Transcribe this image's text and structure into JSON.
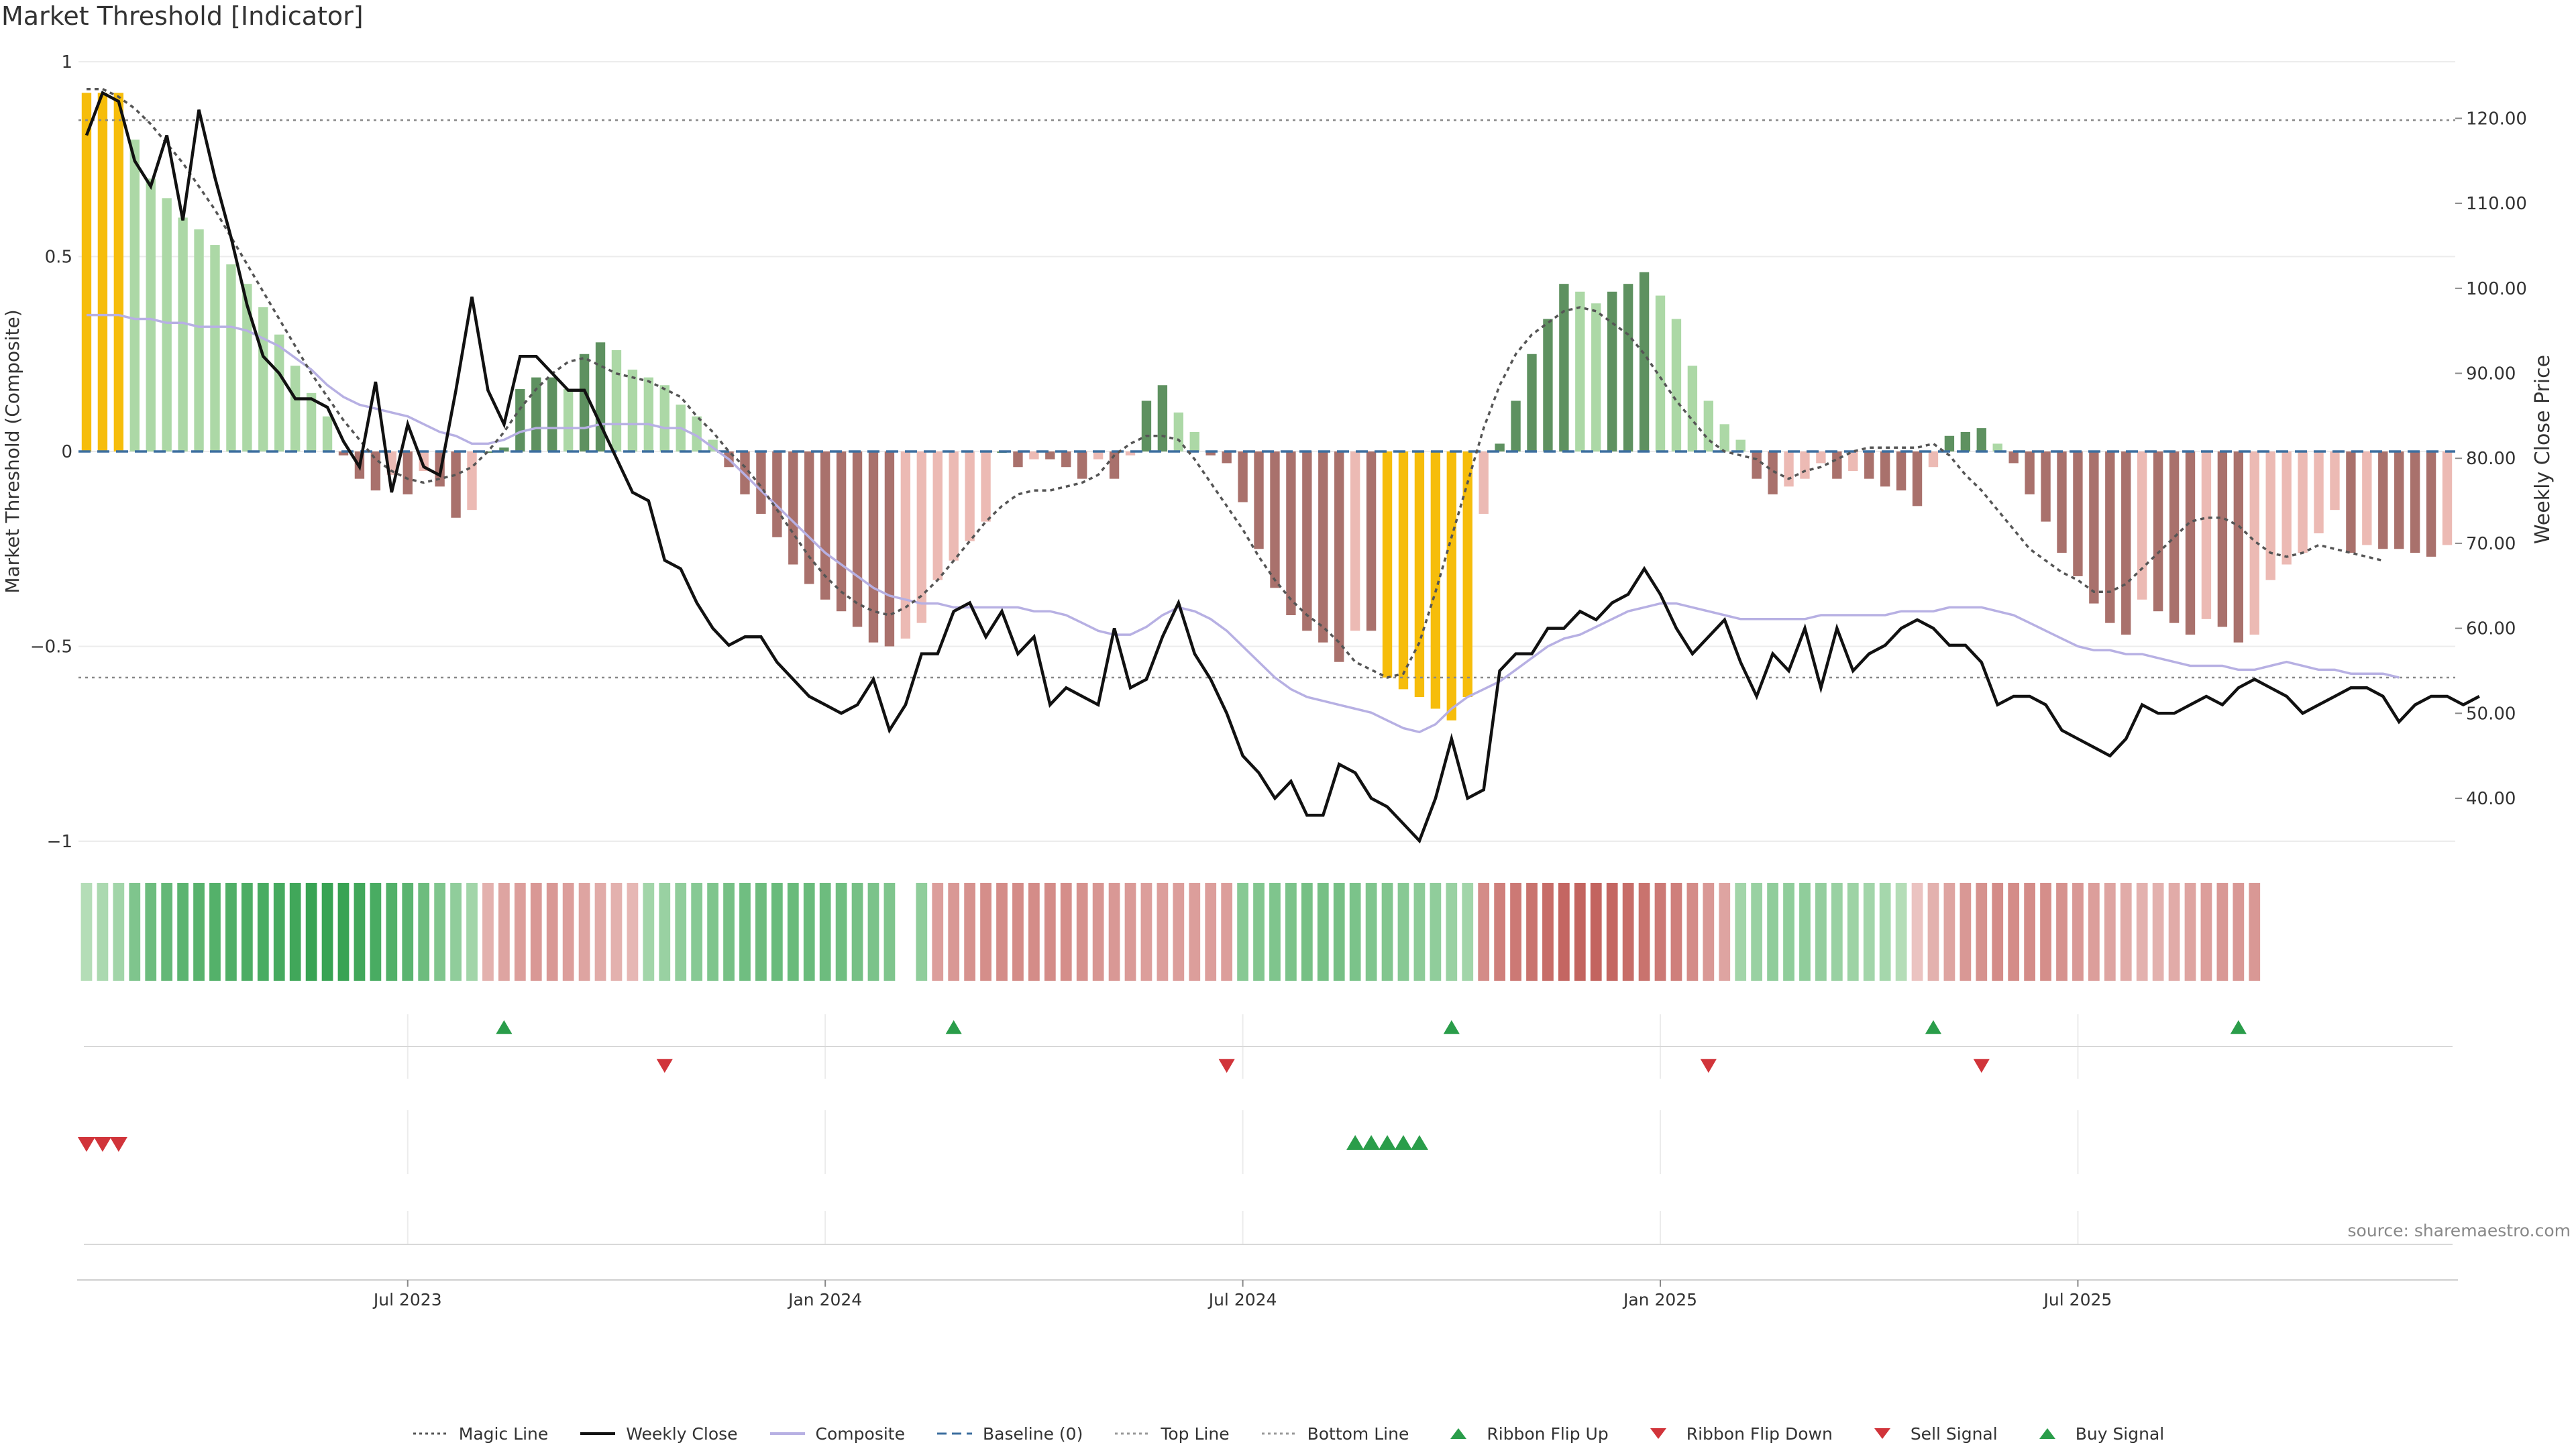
{
  "title": "Market Threshold [Indicator]",
  "source": "source: sharemaestro.com",
  "colors": {
    "magic": "#555555",
    "close": "#111111",
    "composite": "#b7b0e3",
    "baseline": "#3d6f9f",
    "ref": "#888888",
    "lightGreen": "#acd8a6",
    "darkGreen": "#5e9160",
    "lightRed": "#ecbab4",
    "darkRed": "#a9716c",
    "extreme": "#f6bd0b",
    "flipUp": "#2a9d4a",
    "flipDown": "#d1343a"
  },
  "chart_data": {
    "type": "bar",
    "title": "Market Threshold [Indicator]",
    "y_left": {
      "label": "Market Threshold (Composite)",
      "range": [
        -1,
        1
      ],
      "ticks": [
        "1",
        "0.5",
        "0",
        "−0.5",
        "−1"
      ]
    },
    "y_right": {
      "label": "Weekly Close Price",
      "range": [
        35,
        127
      ],
      "ticks": [
        "120.00",
        "110.00",
        "100.00",
        "90.00",
        "80.00",
        "70.00",
        "60.00",
        "50.00",
        "40.00"
      ]
    },
    "x_ticks": [
      "Jul 2023",
      "Jan 2024",
      "Jul 2024",
      "Jan 2025",
      "Jul 2025"
    ],
    "x_tick_weeks": [
      20,
      46,
      72,
      98,
      124
    ],
    "top_line": 0.85,
    "bottom_line": -0.58,
    "composite_bars": [
      0.92,
      0.92,
      0.92,
      0.8,
      0.7,
      0.65,
      0.6,
      0.57,
      0.53,
      0.48,
      0.43,
      0.37,
      0.3,
      0.22,
      0.15,
      0.09,
      -0.01,
      -0.07,
      -0.1,
      -0.06,
      -0.11,
      -0.05,
      -0.09,
      -0.17,
      -0.15,
      0,
      0.01,
      0.16,
      0.19,
      0.19,
      0.16,
      0.25,
      0.28,
      0.26,
      0.21,
      0.19,
      0.17,
      0.12,
      0.09,
      0.03,
      -0.04,
      -0.11,
      -0.16,
      -0.22,
      -0.29,
      -0.34,
      -0.38,
      -0.41,
      -0.45,
      -0.49,
      -0.5,
      -0.48,
      -0.44,
      -0.33,
      -0.28,
      -0.23,
      -0.18,
      0,
      -0.04,
      -0.02,
      -0.02,
      -0.04,
      -0.07,
      -0.02,
      -0.07,
      -0.01,
      0.13,
      0.17,
      0.1,
      0.05,
      -0.01,
      -0.03,
      -0.13,
      -0.25,
      -0.35,
      -0.42,
      -0.46,
      -0.49,
      -0.54,
      -0.46,
      -0.46,
      -0.58,
      -0.61,
      -0.63,
      -0.66,
      -0.69,
      -0.63,
      -0.16,
      0.02,
      0.13,
      0.25,
      0.34,
      0.43,
      0.41,
      0.38,
      0.41,
      0.43,
      0.46,
      0.4,
      0.34,
      0.22,
      0.13,
      0.07,
      0.03,
      -0.07,
      -0.11,
      -0.09,
      -0.07,
      -0.03,
      -0.07,
      -0.05,
      -0.07,
      -0.09,
      -0.1,
      -0.14,
      -0.04,
      0.04,
      0.05,
      0.06,
      0.02,
      -0.03,
      -0.11,
      -0.18,
      -0.26,
      -0.32,
      -0.39,
      -0.44,
      -0.47,
      -0.38,
      -0.41,
      -0.44,
      -0.47,
      -0.43,
      -0.45,
      -0.49,
      -0.47,
      -0.33,
      -0.29,
      -0.26,
      -0.21,
      -0.15,
      -0.26,
      -0.24,
      -0.25,
      -0.25,
      -0.26,
      -0.27,
      -0.24
    ],
    "composite_line": [
      0.35,
      0.35,
      0.35,
      0.34,
      0.34,
      0.33,
      0.33,
      0.32,
      0.32,
      0.32,
      0.31,
      0.29,
      0.27,
      0.24,
      0.21,
      0.17,
      0.14,
      0.12,
      0.11,
      0.1,
      0.09,
      0.07,
      0.05,
      0.04,
      0.02,
      0.02,
      0.03,
      0.05,
      0.06,
      0.06,
      0.06,
      0.06,
      0.07,
      0.07,
      0.07,
      0.07,
      0.06,
      0.06,
      0.04,
      0.01,
      -0.02,
      -0.06,
      -0.1,
      -0.14,
      -0.18,
      -0.22,
      -0.26,
      -0.29,
      -0.32,
      -0.35,
      -0.37,
      -0.38,
      -0.39,
      -0.39,
      -0.4,
      -0.4,
      -0.4,
      -0.4,
      -0.4,
      -0.41,
      -0.41,
      -0.42,
      -0.44,
      -0.46,
      -0.47,
      -0.47,
      -0.45,
      -0.42,
      -0.4,
      -0.41,
      -0.43,
      -0.46,
      -0.5,
      -0.54,
      -0.58,
      -0.61,
      -0.63,
      -0.64,
      -0.65,
      -0.66,
      -0.67,
      -0.69,
      -0.71,
      -0.72,
      -0.7,
      -0.66,
      -0.63,
      -0.61,
      -0.59,
      -0.56,
      -0.53,
      -0.5,
      -0.48,
      -0.47,
      -0.45,
      -0.43,
      -0.41,
      -0.4,
      -0.39,
      -0.39,
      -0.4,
      -0.41,
      -0.42,
      -0.43,
      -0.43,
      -0.43,
      -0.43,
      -0.43,
      -0.42,
      -0.42,
      -0.42,
      -0.42,
      -0.42,
      -0.41,
      -0.41,
      -0.41,
      -0.4,
      -0.4,
      -0.4,
      -0.41,
      -0.42,
      -0.44,
      -0.46,
      -0.48,
      -0.5,
      -0.51,
      -0.51,
      -0.52,
      -0.52,
      -0.53,
      -0.54,
      -0.55,
      -0.55,
      -0.55,
      -0.56,
      -0.56,
      -0.55,
      -0.54,
      -0.55,
      -0.56,
      -0.56,
      -0.57,
      -0.57,
      -0.57,
      -0.58
    ],
    "magic_line": [
      0.93,
      0.93,
      0.91,
      0.88,
      0.84,
      0.79,
      0.74,
      0.68,
      0.62,
      0.55,
      0.48,
      0.41,
      0.34,
      0.27,
      0.2,
      0.14,
      0.08,
      0.03,
      -0.02,
      -0.05,
      -0.07,
      -0.08,
      -0.07,
      -0.06,
      -0.04,
      0,
      0.05,
      0.11,
      0.16,
      0.2,
      0.23,
      0.24,
      0.22,
      0.2,
      0.19,
      0.18,
      0.16,
      0.14,
      0.09,
      0.05,
      0,
      -0.04,
      -0.09,
      -0.15,
      -0.21,
      -0.27,
      -0.32,
      -0.36,
      -0.39,
      -0.41,
      -0.42,
      -0.4,
      -0.37,
      -0.33,
      -0.28,
      -0.23,
      -0.18,
      -0.14,
      -0.11,
      -0.1,
      -0.1,
      -0.09,
      -0.08,
      -0.06,
      -0.01,
      0.02,
      0.04,
      0.04,
      0.03,
      -0.02,
      -0.08,
      -0.14,
      -0.2,
      -0.27,
      -0.33,
      -0.38,
      -0.42,
      -0.45,
      -0.49,
      -0.54,
      -0.56,
      -0.58,
      -0.57,
      -0.49,
      -0.36,
      -0.22,
      -0.08,
      0.06,
      0.17,
      0.25,
      0.3,
      0.33,
      0.36,
      0.37,
      0.36,
      0.33,
      0.3,
      0.25,
      0.19,
      0.13,
      0.08,
      0.03,
      0,
      -0.01,
      -0.02,
      -0.05,
      -0.07,
      -0.05,
      -0.04,
      -0.02,
      0,
      0.01,
      0.01,
      0.01,
      0.01,
      0.02,
      -0.01,
      -0.06,
      -0.1,
      -0.15,
      -0.2,
      -0.25,
      -0.28,
      -0.31,
      -0.33,
      -0.36,
      -0.36,
      -0.34,
      -0.3,
      -0.26,
      -0.22,
      -0.18,
      -0.17,
      -0.17,
      -0.19,
      -0.23,
      -0.26,
      -0.27,
      -0.26,
      -0.24,
      -0.25,
      -0.26,
      -0.27,
      -0.28
    ],
    "weekly_close": [
      118,
      123,
      122,
      115,
      112,
      118,
      108,
      121,
      113,
      106,
      98,
      92,
      90,
      87,
      87,
      86,
      82,
      79,
      89,
      76,
      84,
      79,
      78,
      88,
      99,
      88,
      84,
      92,
      92,
      90,
      88,
      88,
      84,
      80,
      76,
      75,
      68,
      67,
      63,
      60,
      58,
      59,
      59,
      56,
      54,
      52,
      51,
      50,
      51,
      54,
      48,
      51,
      57,
      57,
      62,
      63,
      59,
      62,
      57,
      59,
      51,
      53,
      52,
      51,
      60,
      53,
      54,
      59,
      63,
      57,
      54,
      50,
      45,
      43,
      40,
      42,
      38,
      38,
      44,
      43,
      40,
      39,
      37,
      35,
      40,
      47,
      40,
      41,
      55,
      57,
      57,
      60,
      60,
      62,
      61,
      63,
      64,
      67,
      64,
      60,
      57,
      59,
      61,
      56,
      52,
      57,
      55,
      60,
      53,
      60,
      55,
      57,
      58,
      60,
      61,
      60,
      58,
      58,
      56,
      51,
      52,
      52,
      51,
      48,
      47,
      46,
      45,
      47,
      51,
      50,
      50,
      51,
      52,
      51,
      53,
      54,
      53,
      52,
      50,
      51,
      52,
      53,
      53,
      52,
      49,
      51,
      52,
      52,
      51,
      52
    ],
    "ribbon": [
      0.2,
      0.25,
      0.3,
      0.5,
      0.6,
      0.65,
      0.7,
      0.72,
      0.74,
      0.76,
      0.78,
      0.8,
      0.82,
      0.85,
      0.9,
      0.9,
      0.9,
      0.85,
      0.8,
      0.75,
      0.7,
      0.6,
      0.5,
      0.4,
      0.3,
      -0.3,
      -0.4,
      -0.45,
      -0.5,
      -0.5,
      -0.45,
      -0.4,
      -0.35,
      -0.3,
      -0.25,
      0.3,
      0.35,
      0.4,
      0.45,
      0.5,
      0.55,
      0.58,
      0.6,
      0.62,
      0.62,
      0.62,
      0.6,
      0.58,
      0.55,
      0.52,
      0.5,
      null,
      0.4,
      -0.45,
      -0.5,
      -0.55,
      -0.58,
      -0.6,
      -0.6,
      -0.6,
      -0.6,
      -0.58,
      -0.55,
      -0.52,
      -0.5,
      -0.48,
      -0.45,
      -0.45,
      -0.45,
      -0.45,
      -0.45,
      -0.45,
      0.45,
      0.48,
      0.5,
      0.52,
      0.55,
      0.55,
      0.55,
      0.52,
      0.5,
      0.48,
      0.45,
      0.42,
      0.4,
      0.35,
      0.3,
      -0.6,
      -0.7,
      -0.75,
      -0.8,
      -0.85,
      -0.9,
      -0.92,
      -0.92,
      -0.9,
      -0.85,
      -0.8,
      -0.75,
      -0.7,
      -0.6,
      -0.5,
      -0.4,
      0.3,
      0.35,
      0.4,
      0.4,
      0.4,
      0.38,
      0.35,
      0.33,
      0.3,
      0.28,
      0.2,
      -0.15,
      -0.3,
      -0.4,
      -0.5,
      -0.55,
      -0.6,
      -0.6,
      -0.6,
      -0.58,
      -0.55,
      -0.5,
      -0.45,
      -0.4,
      -0.35,
      -0.3,
      -0.3,
      -0.35,
      -0.4,
      -0.45,
      -0.5,
      -0.5,
      -0.5
    ],
    "ribbon_flip_up": [
      26,
      54,
      85,
      115,
      134
    ],
    "ribbon_flip_down": [
      36,
      71,
      101,
      118
    ],
    "sell_signals": [
      0,
      1,
      2
    ],
    "buy_signals": [
      79,
      80,
      81,
      82,
      83
    ]
  },
  "legend": [
    {
      "label": "Magic Line",
      "icon": "dotted-line",
      "color": "#555555"
    },
    {
      "label": "Weekly Close",
      "icon": "solid-line",
      "color": "#111111"
    },
    {
      "label": "Composite",
      "icon": "solid-line",
      "color": "#b7b0e3"
    },
    {
      "label": "Baseline (0)",
      "icon": "dashed-line",
      "color": "#3d6f9f"
    },
    {
      "label": "Top Line",
      "icon": "dotted-line",
      "color": "#999999"
    },
    {
      "label": "Bottom Line",
      "icon": "dotted-line",
      "color": "#999999"
    },
    {
      "label": "Ribbon Flip Up",
      "icon": "triangle-up-icon",
      "color": "#2a9d4a"
    },
    {
      "label": "Ribbon Flip Down",
      "icon": "triangle-down-icon",
      "color": "#d1343a"
    },
    {
      "label": "Sell Signal",
      "icon": "triangle-down-icon",
      "color": "#d1343a"
    },
    {
      "label": "Buy Signal",
      "icon": "triangle-up-icon",
      "color": "#2a9d4a"
    }
  ]
}
